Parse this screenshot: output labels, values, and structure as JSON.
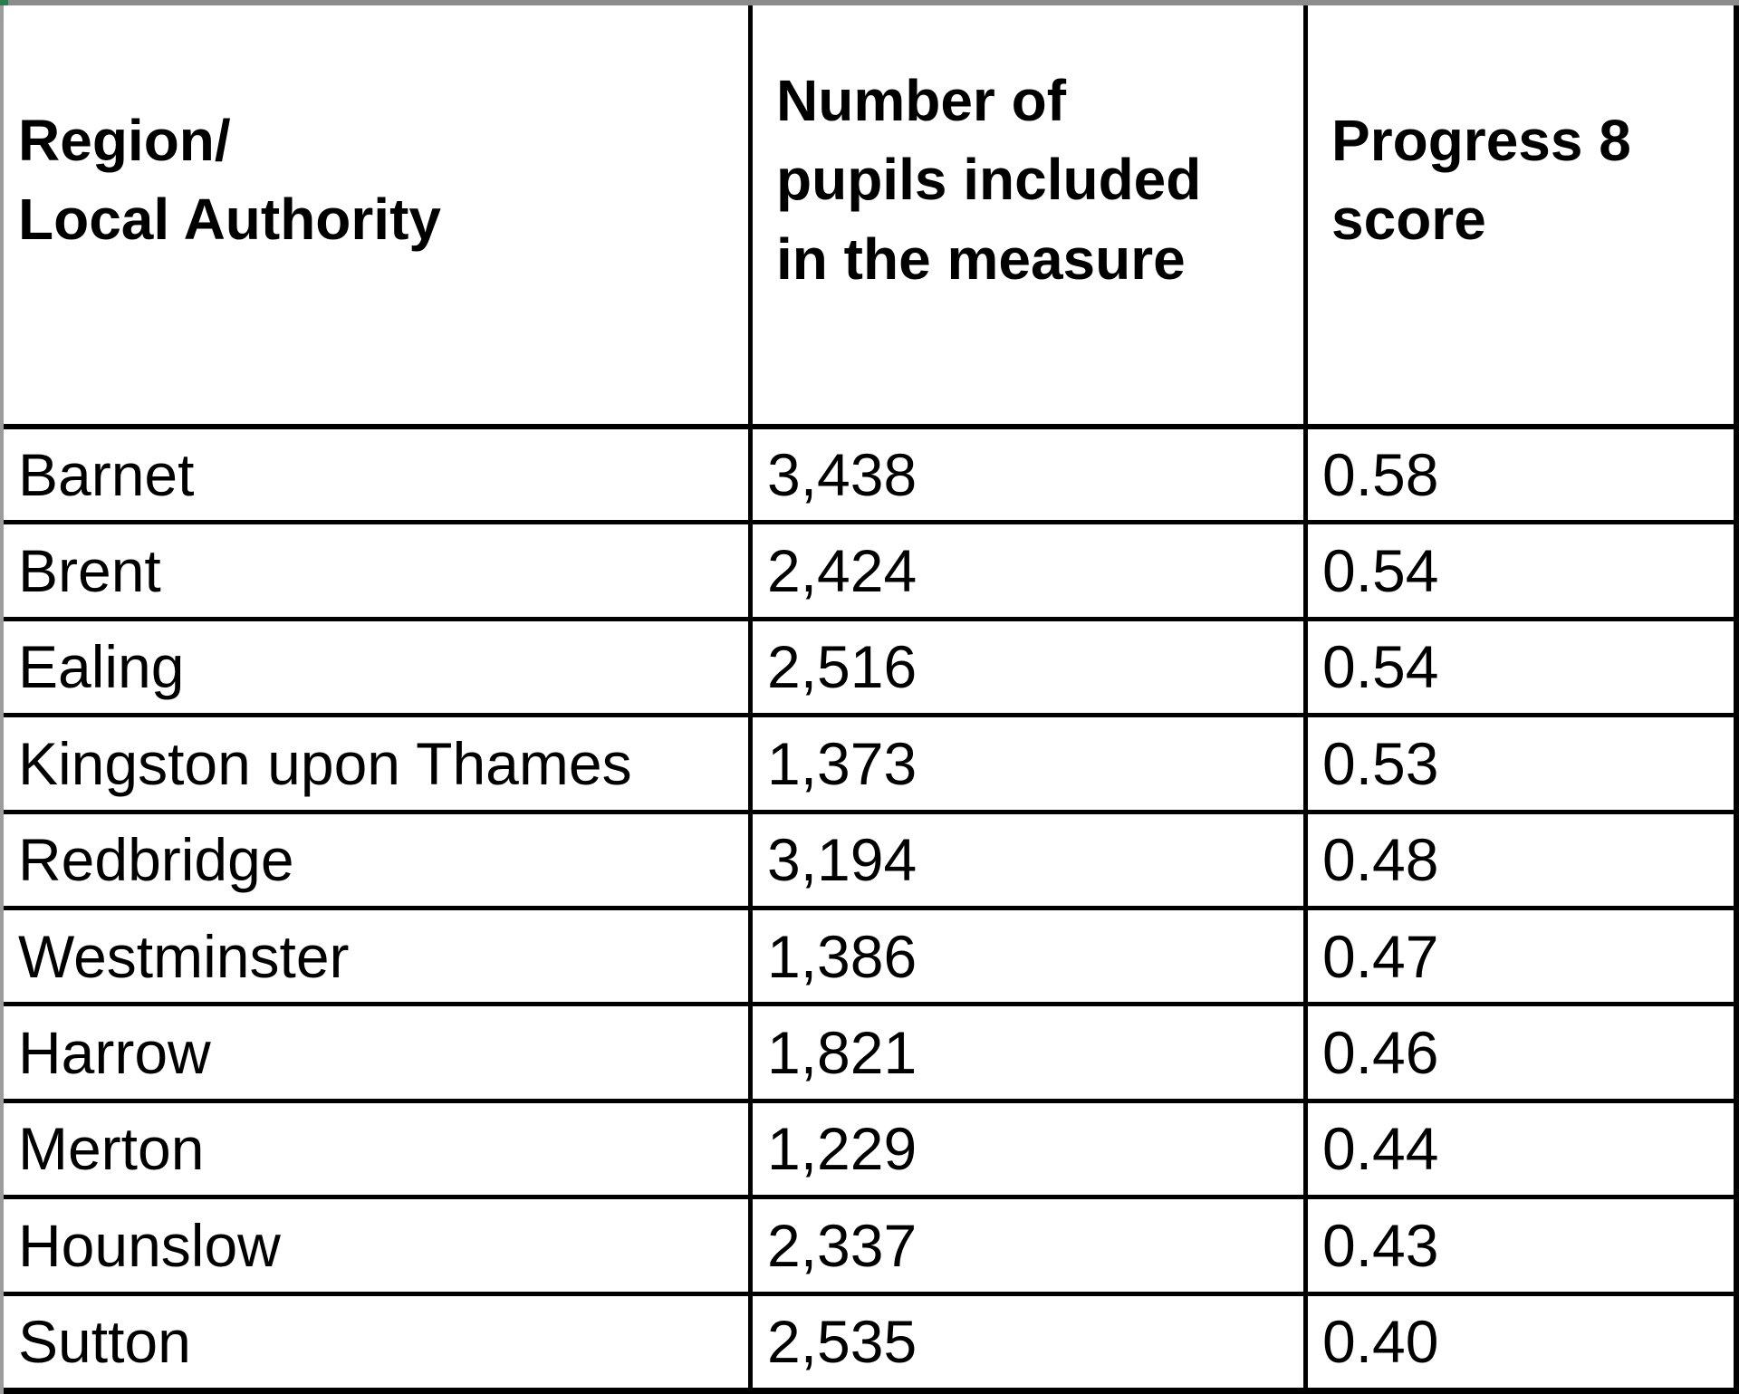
{
  "colors": {
    "background": "#ffffff",
    "text": "#000000",
    "table_border": "#000000",
    "top_edge_bar": "#8c8c8c",
    "left_edge_strip": "#9c9c9c",
    "corner_accent_green": "#2c7d4d"
  },
  "table": {
    "header": {
      "col1_lines": [
        "Region/",
        "Local Authority"
      ],
      "col2_lines": [
        "Number of",
        "pupils included",
        "in the measure"
      ],
      "col3_lines": [
        "Progress 8",
        "score"
      ]
    },
    "rows": [
      {
        "region": "Barnet",
        "pupils": "3,438",
        "score": "0.58"
      },
      {
        "region": "Brent",
        "pupils": "2,424",
        "score": "0.54"
      },
      {
        "region": "Ealing",
        "pupils": "2,516",
        "score": "0.54"
      },
      {
        "region": "Kingston upon Thames",
        "pupils": "1,373",
        "score": "0.53"
      },
      {
        "region": "Redbridge",
        "pupils": "3,194",
        "score": "0.48"
      },
      {
        "region": "Westminster",
        "pupils": "1,386",
        "score": "0.47"
      },
      {
        "region": "Harrow",
        "pupils": "1,821",
        "score": "0.46"
      },
      {
        "region": "Merton",
        "pupils": "1,229",
        "score": "0.44"
      },
      {
        "region": "Hounslow",
        "pupils": "2,337",
        "score": "0.43"
      },
      {
        "region": "Sutton",
        "pupils": "2,535",
        "score": "0.40"
      }
    ]
  },
  "chart_data": {
    "type": "table",
    "columns": [
      "Region/ Local Authority",
      "Number of pupils included in the measure",
      "Progress 8 score"
    ],
    "rows": [
      [
        "Barnet",
        3438,
        0.58
      ],
      [
        "Brent",
        2424,
        0.54
      ],
      [
        "Ealing",
        2516,
        0.54
      ],
      [
        "Kingston upon Thames",
        1373,
        0.53
      ],
      [
        "Redbridge",
        3194,
        0.48
      ],
      [
        "Westminster",
        1386,
        0.47
      ],
      [
        "Harrow",
        1821,
        0.46
      ],
      [
        "Merton",
        1229,
        0.44
      ],
      [
        "Hounslow",
        2337,
        0.43
      ],
      [
        "Sutton",
        2535,
        0.4
      ]
    ]
  }
}
